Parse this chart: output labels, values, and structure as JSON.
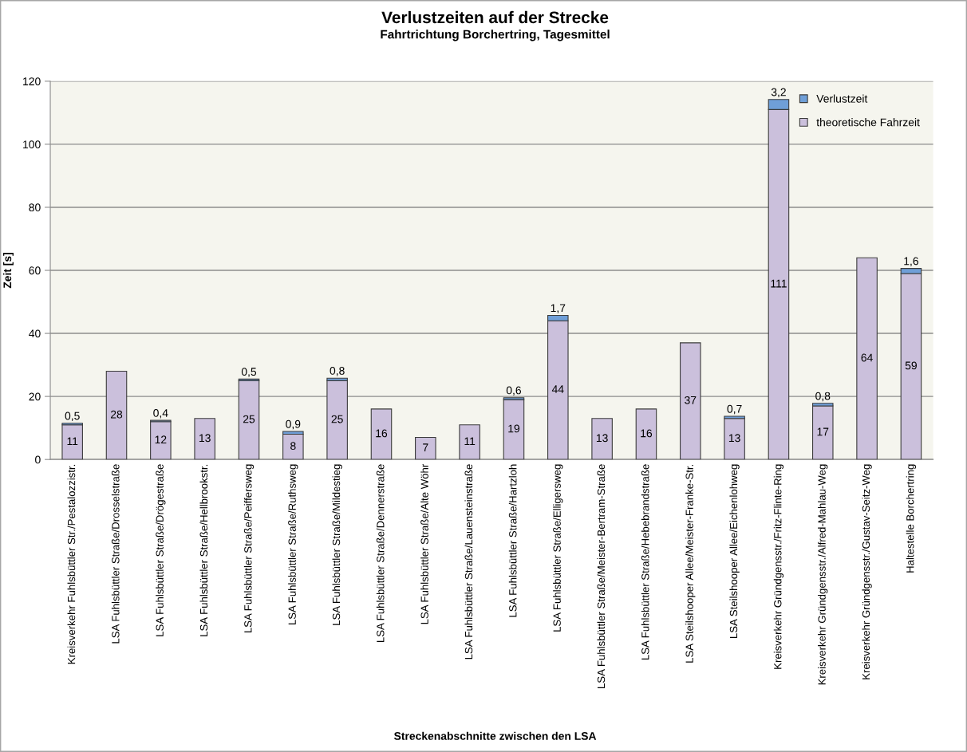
{
  "chart_data": {
    "type": "bar",
    "stacked": true,
    "title": "Verlustzeiten auf der Strecke",
    "subtitle": "Fahrtrichtung Borchertring, Tagesmittel",
    "xlabel": "Streckenabschnitte zwischen den LSA",
    "ylabel": "Zeit [s]",
    "categories": [
      "Kreisverkehr Fuhlsbüttler Str./Pestalozzistr.",
      "LSA Fuhlsbüttler Straße/Drosselstraße",
      "LSA Fuhlsbüttler Straße/Drögestraße",
      "LSA Fuhlsbüttler Straße/Hellbrookstr.",
      "LSA Fuhlsbüttler Straße/Peiffersweg",
      "LSA Fuhlsbüttler Straße/Ruthsweg",
      "LSA Fuhlsbüttler Straße/Mildestieg",
      "LSA Fuhlsbüttler Straße/Dennerstraße",
      "LSA Fuhlsbüttler Straße/Alte Wöhr",
      "LSA Fuhlsbüttler Straße/Lauensteinstraße",
      "LSA Fuhlsbüttler Straße/Hartzloh",
      "LSA Fuhlsbüttler Straße/Elligersweg",
      "LSA Fuhlsbüttler Straße/Meister-Bertram-Straße",
      "LSA Fuhlsbüttler Straße/Hebebrandstraße",
      "LSA Steilshooper Allee/Meister-Franke-Str.",
      "LSA Steilshooper Allee/Eichenlohweg",
      "Kreisverkehr Gründgensstr./Fritz-Flinte-Ring",
      "Kreisverkehr Gründgensstr./Alfred-Mahlau-Weg",
      "Kreisverkehr Gründgensstr./Gustav-Seitz-Weg",
      "Haltestelle Borchertring"
    ],
    "series": [
      {
        "name": "theoretische Fahrzeit",
        "color": "#cbc0dc",
        "values": [
          11,
          28,
          12,
          13,
          25,
          8,
          25,
          16,
          7,
          11,
          19,
          44,
          13,
          16,
          37,
          13,
          111,
          17,
          64,
          59
        ],
        "value_labels": [
          "11",
          "28",
          "12",
          "13",
          "25",
          "8",
          "25",
          "16",
          "7",
          "11",
          "19",
          "44",
          "13",
          "16",
          "37",
          "13",
          "111",
          "17",
          "64",
          "59"
        ]
      },
      {
        "name": "Verlustzeit",
        "color": "#6f9fd8",
        "values": [
          0.5,
          null,
          0.4,
          null,
          0.5,
          0.9,
          0.8,
          null,
          null,
          null,
          0.6,
          1.7,
          null,
          null,
          null,
          0.7,
          3.2,
          0.8,
          null,
          1.6
        ],
        "value_labels": [
          "0,5",
          null,
          "0,4",
          null,
          "0,5",
          "0,9",
          "0,8",
          null,
          null,
          null,
          "0,6",
          "1,7",
          null,
          null,
          null,
          "0,7",
          "3,2",
          "0,8",
          null,
          "1,6"
        ]
      }
    ],
    "ylim": [
      0,
      120
    ],
    "yticks": [
      0,
      20,
      40,
      60,
      80,
      100,
      120
    ],
    "grid": "y",
    "legend": "top right"
  }
}
